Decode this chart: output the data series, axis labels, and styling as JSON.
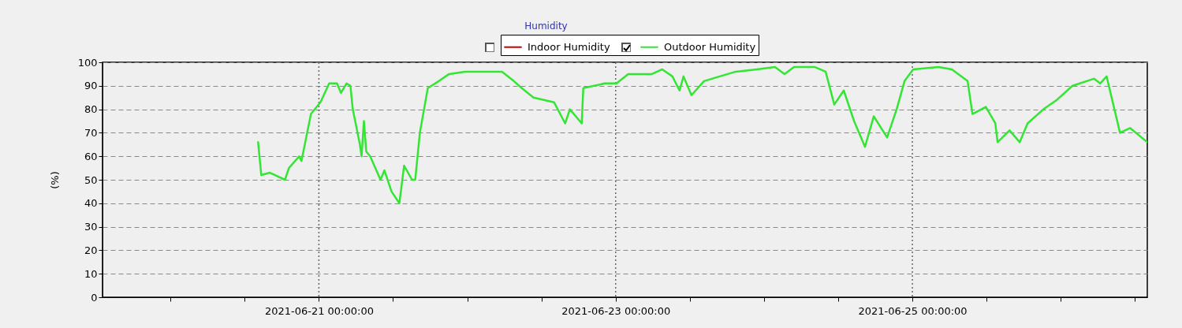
{
  "chart_data": {
    "type": "line",
    "title": "Humidity",
    "ylabel": "(%)",
    "legend": "top",
    "grid": true,
    "xlim": [
      "2021-06-19T13:00",
      "2021-06-26T14:00"
    ],
    "ylim": [
      0,
      100
    ],
    "yticks": [
      0,
      10,
      20,
      30,
      40,
      50,
      60,
      70,
      80,
      90,
      100
    ],
    "xticks": [
      {
        "value": "2021-06-20",
        "label": null
      },
      {
        "value": "2021-06-20T12:00",
        "label": null
      },
      {
        "value": "2021-06-21",
        "label": "2021-06-21 00:00:00"
      },
      {
        "value": "2021-06-21T12:00",
        "label": null
      },
      {
        "value": "2021-06-22",
        "label": null
      },
      {
        "value": "2021-06-22T12:00",
        "label": null
      },
      {
        "value": "2021-06-23",
        "label": "2021-06-23 00:00:00"
      },
      {
        "value": "2021-06-23T12:00",
        "label": null
      },
      {
        "value": "2021-06-24",
        "label": null
      },
      {
        "value": "2021-06-24T12:00",
        "label": null
      },
      {
        "value": "2021-06-25",
        "label": "2021-06-25 00:00:00"
      },
      {
        "value": "2021-06-25T12:00",
        "label": null
      },
      {
        "value": "2021-06-26",
        "label": null
      },
      {
        "value": "2021-06-26T12:00",
        "label": null
      }
    ],
    "series": [
      {
        "name": "Indoor Humidity",
        "color": "#cc0000"
      },
      {
        "name": "Outdoor Humidity",
        "color": "#33e633",
        "x": [
          "2021-06-20T14:10",
          "2021-06-20T14:41",
          "2021-06-20T16:05",
          "2021-06-20T18:31",
          "2021-06-20T19:09",
          "2021-06-20T20:49",
          "2021-06-20T21:11",
          "2021-06-20T22:43",
          "2021-06-21T00:15",
          "2021-06-21T01:40",
          "2021-06-21T02:56",
          "2021-06-21T03:34",
          "2021-06-21T04:28",
          "2021-06-21T05:06",
          "2021-06-21T05:29",
          "2021-06-21T06:38",
          "2021-06-21T06:54",
          "2021-06-21T07:17",
          "2021-06-21T07:40",
          "2021-06-21T08:18",
          "2021-06-21T09:58",
          "2021-06-21T10:36",
          "2021-06-21T11:45",
          "2021-06-21T13:01",
          "2021-06-21T13:47",
          "2021-06-21T15:04",
          "2021-06-21T15:35",
          "2021-06-21T16:20",
          "2021-06-21T17:37",
          "2021-06-21T19:24",
          "2021-06-21T21:04",
          "2021-06-21T23:37",
          "2021-06-22T05:37",
          "2021-06-22T07:32",
          "2021-06-22T08:49",
          "2021-06-22T10:43",
          "2021-06-22T14:02",
          "2021-06-22T15:50",
          "2021-06-22T16:36",
          "2021-06-22T18:31",
          "2021-06-22T18:46",
          "2021-06-22T22:13",
          "2021-06-23T00:08",
          "2021-06-23T02:02",
          "2021-06-23T05:52",
          "2021-06-23T07:32",
          "2021-06-23T09:11",
          "2021-06-23T10:20",
          "2021-06-23T10:59",
          "2021-06-23T12:16",
          "2021-06-23T14:18",
          "2021-06-23T16:51",
          "2021-06-23T19:25",
          "2021-06-23T22:51",
          "2021-06-24T01:47",
          "2021-06-24T03:19",
          "2021-06-24T04:51",
          "2021-06-24T08:10",
          "2021-06-24T09:58",
          "2021-06-24T11:22",
          "2021-06-24T12:54",
          "2021-06-24T14:34",
          "2021-06-24T16:20",
          "2021-06-24T17:45",
          "2021-06-24T19:55",
          "2021-06-24T21:27",
          "2021-06-24T22:44",
          "2021-06-25T00:08",
          "2021-06-25T04:13",
          "2021-06-25T06:23",
          "2021-06-25T08:56",
          "2021-06-25T09:43",
          "2021-06-25T11:53",
          "2021-06-25T13:25",
          "2021-06-25T13:47",
          "2021-06-25T15:43",
          "2021-06-25T17:22",
          "2021-06-25T18:38",
          "2021-06-25T21:12",
          "2021-06-25T23:22",
          "2021-06-26T01:55",
          "2021-06-26T05:22",
          "2021-06-26T06:23",
          "2021-06-26T07:25",
          "2021-06-26T09:35",
          "2021-06-26T11:14",
          "2021-06-26T14:00"
        ],
        "values": [
          66,
          52,
          53,
          50,
          55,
          60,
          58,
          78,
          83,
          91,
          91,
          87,
          91,
          90,
          80,
          65,
          60,
          75,
          62,
          60,
          50,
          54,
          45,
          40,
          56,
          50,
          50,
          70,
          89,
          92,
          95,
          96,
          96,
          92,
          89,
          85,
          83,
          74,
          80,
          74,
          89,
          91,
          91,
          95,
          95,
          97,
          94,
          88,
          94,
          86,
          92,
          94,
          96,
          97,
          98,
          95,
          98,
          98,
          96,
          82,
          88,
          75,
          64,
          77,
          68,
          80,
          92,
          97,
          98,
          97,
          92,
          78,
          81,
          74,
          66,
          71,
          66,
          74,
          80,
          84,
          90,
          93,
          91,
          94,
          70,
          72,
          66
        ]
      }
    ]
  }
}
